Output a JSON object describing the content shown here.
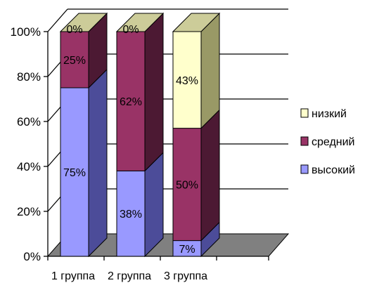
{
  "chart_data": {
    "type": "bar",
    "stacked": true,
    "percent_stacked": true,
    "three_d": true,
    "categories": [
      "1 группа",
      "2 группа",
      "3 группа"
    ],
    "series": [
      {
        "name": "высокий",
        "values": [
          75,
          38,
          7
        ],
        "labels": [
          "75%",
          "38%",
          "7%"
        ],
        "color": "#9999ff",
        "side_color": "#4c4c99",
        "top_color": "#7a7acc"
      },
      {
        "name": "средний",
        "values": [
          25,
          62,
          50
        ],
        "labels": [
          "25%",
          "62%",
          "50%"
        ],
        "color": "#993366",
        "side_color": "#4c1933",
        "top_color": "#7a2952"
      },
      {
        "name": "низкий",
        "values": [
          0,
          0,
          43
        ],
        "labels": [
          "0%",
          "0%",
          "43%"
        ],
        "color": "#ffffcc",
        "side_color": "#999966",
        "top_color": "#cccc99"
      }
    ],
    "y_ticks": [
      "0%",
      "20%",
      "40%",
      "60%",
      "80%",
      "100%"
    ],
    "ylim": [
      0,
      100
    ],
    "grid": true,
    "legend_position": "right",
    "legend_order": [
      "низкий",
      "средний",
      "высокий"
    ],
    "title": "",
    "xlabel": "",
    "ylabel": ""
  },
  "colors": {
    "floor": "#808080",
    "wall": "#ffffff",
    "gridline": "#000000"
  }
}
